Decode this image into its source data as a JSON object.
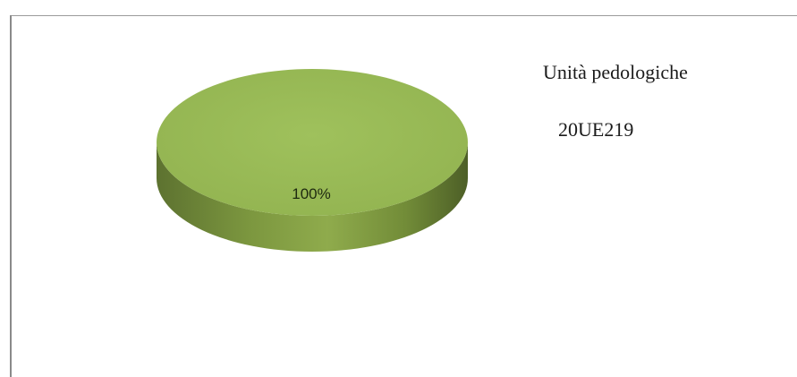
{
  "chart_data": {
    "type": "pie",
    "style": "3d",
    "legend_title": "Unità pedologiche",
    "legend_placement": "right",
    "slices": [
      {
        "label": "20UE219",
        "value": 100,
        "data_label": "100%",
        "color": "#9bbb59"
      }
    ]
  }
}
